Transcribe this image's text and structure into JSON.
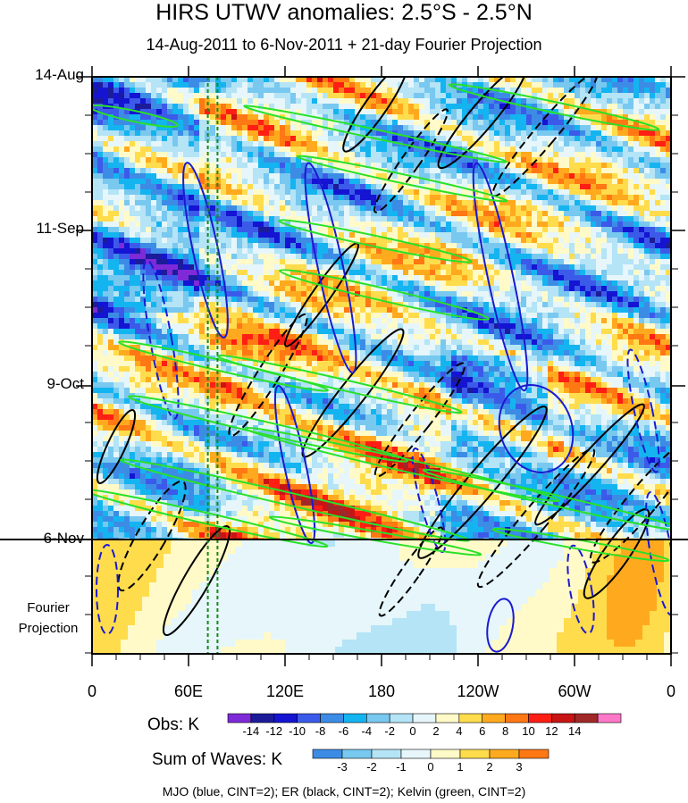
{
  "chart_data": {
    "type": "heatmap",
    "title": "HIRS UTWV anomalies: 2.5°S - 2.5°N",
    "subtitle": "14-Aug-2011 to 6-Nov-2011 + 21-day Fourier Projection",
    "y_ticks": [
      "14-Aug",
      "11-Sep",
      "9-Oct",
      "6-Nov"
    ],
    "projection_label": [
      "Fourier",
      "Projection"
    ],
    "x_ticks": [
      "0",
      "60E",
      "120E",
      "180",
      "120W",
      "60W",
      "0"
    ],
    "x_range": [
      0,
      360
    ],
    "obs_colorbar": {
      "label": "Obs: K",
      "ticks": [
        -14,
        -12,
        -10,
        -8,
        -6,
        -4,
        -2,
        0,
        2,
        4,
        6,
        8,
        10,
        12,
        14
      ],
      "colors": [
        "#7e2ad8",
        "#1c1c9a",
        "#1414d2",
        "#3c5aea",
        "#3c8ce6",
        "#14b4f0",
        "#78c8f0",
        "#b4e4f6",
        "#e6f6fa",
        "#fffac8",
        "#ffdc4c",
        "#ffaa1e",
        "#ff7814",
        "#ff1e14",
        "#c81414",
        "#a02828",
        "#ff78c8"
      ]
    },
    "waves_colorbar": {
      "label": "Sum of Waves: K",
      "ticks": [
        -3,
        -2,
        -1,
        0,
        1,
        2,
        3
      ],
      "colors": [
        "#3c8ce6",
        "#78c8f0",
        "#b4e4f6",
        "#e6f6fa",
        "#fffac8",
        "#ffdc4c",
        "#ffaa1e",
        "#ff7814"
      ]
    },
    "markers": {
      "vertical_dashed_longitudes": [
        72,
        78
      ],
      "vertical_dashed_color": "#178a17",
      "split_date": "6-Nov"
    },
    "legend": "MJO (blue, CINT=2); ER (black, CINT=2); Kelvin (green, CINT=2)",
    "series_colors": {
      "mjo": "#1a1ad0",
      "er": "#000000",
      "kelvin": "#29e129"
    }
  }
}
